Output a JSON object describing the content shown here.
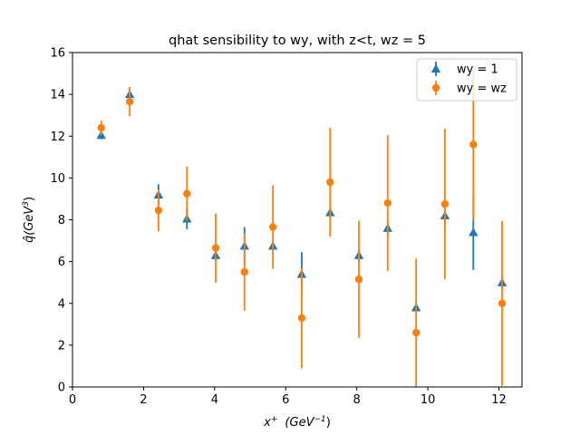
{
  "chart_data": {
    "type": "scatter",
    "title": "qhat sensibility to wy, with z<t, wz = 5",
    "xlabel": {
      "main": "x",
      "sup": "+",
      "unit_pre": "(GeV",
      "unit_sup": "−1",
      "unit_post": ")"
    },
    "ylabel": {
      "main": "q̂(GeV",
      "sup": "3",
      "post": ")"
    },
    "xlim": [
      0,
      12.65
    ],
    "ylim": [
      0,
      16
    ],
    "xticks": [
      0,
      2,
      4,
      6,
      8,
      10,
      12
    ],
    "yticks": [
      0,
      2,
      4,
      6,
      8,
      10,
      12,
      14,
      16
    ],
    "grid": false,
    "legend_placement": "top-right",
    "series": [
      {
        "name": "wy = 1",
        "marker": "triangle",
        "color": "#1f77b4",
        "x": [
          0.81,
          1.61,
          2.42,
          3.22,
          4.03,
          4.84,
          5.64,
          6.45,
          7.25,
          8.06,
          8.87,
          9.67,
          10.48,
          11.28,
          12.09
        ],
        "y": [
          12.05,
          14.0,
          9.2,
          8.05,
          6.3,
          6.75,
          6.75,
          5.4,
          8.35,
          6.3,
          7.6,
          3.8,
          8.2,
          7.4,
          5.0
        ],
        "err": [
          0.2,
          0.25,
          0.5,
          0.5,
          0.3,
          0.9,
          0.3,
          1.05,
          0.2,
          0.3,
          0.35,
          0.3,
          0.5,
          1.8,
          0.3
        ]
      },
      {
        "name": "wy = wz",
        "marker": "circle",
        "color": "#ff7f0e",
        "x": [
          0.81,
          1.61,
          2.42,
          3.22,
          4.03,
          4.84,
          5.64,
          6.45,
          7.25,
          8.06,
          8.87,
          9.67,
          10.48,
          11.28,
          12.09
        ],
        "y": [
          12.4,
          13.65,
          8.45,
          9.25,
          6.65,
          5.5,
          7.65,
          3.3,
          9.8,
          5.15,
          8.8,
          2.6,
          8.75,
          11.6,
          4.0
        ],
        "err": [
          0.35,
          0.7,
          1.0,
          1.3,
          1.65,
          1.85,
          2.0,
          2.4,
          2.6,
          2.8,
          3.25,
          3.55,
          3.6,
          3.6,
          3.95
        ]
      }
    ]
  }
}
